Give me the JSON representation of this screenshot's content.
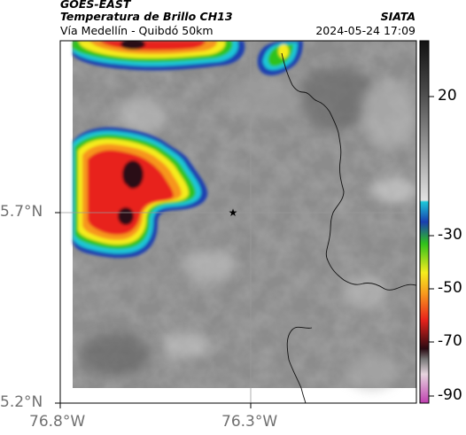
{
  "header": {
    "source": "GOES-EAST",
    "product": "Temperatura de Brillo CH13",
    "route": "Vía Medellín - Quibdó 50km",
    "organization": "SIATA",
    "timestamp": "2024-05-24 17:09"
  },
  "map": {
    "y_axis_labels": [
      "5.7°N",
      "5.2°N"
    ],
    "x_axis_labels": [
      "76.8°W",
      "76.3°W"
    ],
    "marker": "star-icon",
    "colors": {
      "cold_core": "#2a0a12",
      "red": "#e8231c",
      "orange": "#f7961e",
      "yellow": "#f5ec1e",
      "green": "#2fc21c",
      "blue": "#1a3fb0",
      "cyan": "#1cc7d8"
    }
  },
  "colorbar": {
    "tick_labels": [
      "20",
      "-30",
      "-50",
      "-70",
      "-90"
    ],
    "colors_top_to_bottom": [
      "#1a1a1a",
      "#6e6e6e",
      "#d8d8d8",
      "#1cc7d8",
      "#1a3fb0",
      "#2fc21c",
      "#f5ec1e",
      "#f7961e",
      "#e8231c",
      "#2a0a12",
      "#d8c0d0",
      "#c040b0"
    ]
  }
}
